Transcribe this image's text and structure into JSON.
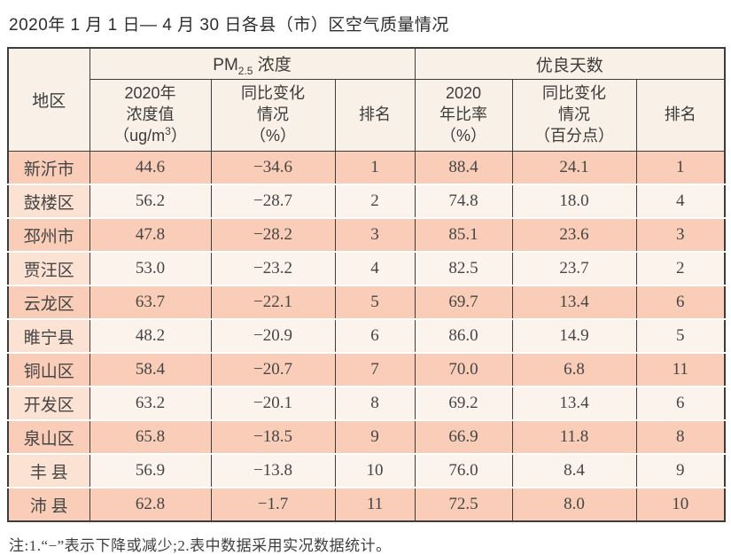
{
  "title": "2020年 1 月 1 日— 4 月 30 日各县（市）区空气质量情况",
  "colors": {
    "row_salmon": "#f9cdb7",
    "row_cream": "#fdf3ed",
    "region_col_light": "#fbe2d3",
    "header_bg": "#f9f0e7",
    "border_dark": "#3d3d3d"
  },
  "table": {
    "header": {
      "region": "地区",
      "pm_group": {
        "prefix": "PM",
        "sub": "2.5",
        "suffix": " 浓度"
      },
      "good_days_group": "优良天数",
      "pm_value": {
        "line1": "2020年",
        "line2": "浓度值",
        "line3_prefix": "（ug/m",
        "line3_sup": "3",
        "line3_suffix": "）"
      },
      "pm_change": {
        "line1": "同比变化",
        "line2": "情况",
        "line3": "（%）"
      },
      "pm_rank": "排名",
      "gd_ratio": {
        "line1": "2020",
        "line2": "年比率",
        "line3": "（%）"
      },
      "gd_change": {
        "line1": "同比变化",
        "line2": "情况",
        "line3": "（百分点）"
      },
      "gd_rank": "排名"
    },
    "rows": [
      {
        "region": "新沂市",
        "pm_value": "44.6",
        "pm_change": "−34.6",
        "pm_rank": "1",
        "gd_ratio": "88.4",
        "gd_change": "24.1",
        "gd_rank": "1"
      },
      {
        "region": "鼓楼区",
        "pm_value": "56.2",
        "pm_change": "−28.7",
        "pm_rank": "2",
        "gd_ratio": "74.8",
        "gd_change": "18.0",
        "gd_rank": "4"
      },
      {
        "region": "邳州市",
        "pm_value": "47.8",
        "pm_change": "−28.2",
        "pm_rank": "3",
        "gd_ratio": "85.1",
        "gd_change": "23.6",
        "gd_rank": "3"
      },
      {
        "region": "贾汪区",
        "pm_value": "53.0",
        "pm_change": "−23.2",
        "pm_rank": "4",
        "gd_ratio": "82.5",
        "gd_change": "23.7",
        "gd_rank": "2"
      },
      {
        "region": "云龙区",
        "pm_value": "63.7",
        "pm_change": "−22.1",
        "pm_rank": "5",
        "gd_ratio": "69.7",
        "gd_change": "13.4",
        "gd_rank": "6"
      },
      {
        "region": "睢宁县",
        "pm_value": "48.2",
        "pm_change": "−20.9",
        "pm_rank": "6",
        "gd_ratio": "86.0",
        "gd_change": "14.9",
        "gd_rank": "5"
      },
      {
        "region": "铜山区",
        "pm_value": "58.4",
        "pm_change": "−20.7",
        "pm_rank": "7",
        "gd_ratio": "70.0",
        "gd_change": "6.8",
        "gd_rank": "11"
      },
      {
        "region": "开发区",
        "pm_value": "63.2",
        "pm_change": "−20.1",
        "pm_rank": "8",
        "gd_ratio": "69.2",
        "gd_change": "13.4",
        "gd_rank": "6"
      },
      {
        "region": "泉山区",
        "pm_value": "65.8",
        "pm_change": "−18.5",
        "pm_rank": "9",
        "gd_ratio": "66.9",
        "gd_change": "11.8",
        "gd_rank": "8"
      },
      {
        "region": "丰 县",
        "pm_value": "56.9",
        "pm_change": "−13.8",
        "pm_rank": "10",
        "gd_ratio": "76.0",
        "gd_change": "8.4",
        "gd_rank": "9"
      },
      {
        "region": "沛 县",
        "pm_value": "62.8",
        "pm_change": "−1.7",
        "pm_rank": "11",
        "gd_ratio": "72.5",
        "gd_change": "8.0",
        "gd_rank": "10"
      }
    ]
  },
  "note": "注:1.“−”表示下降或减少;2.表中数据采用实况数据统计。"
}
